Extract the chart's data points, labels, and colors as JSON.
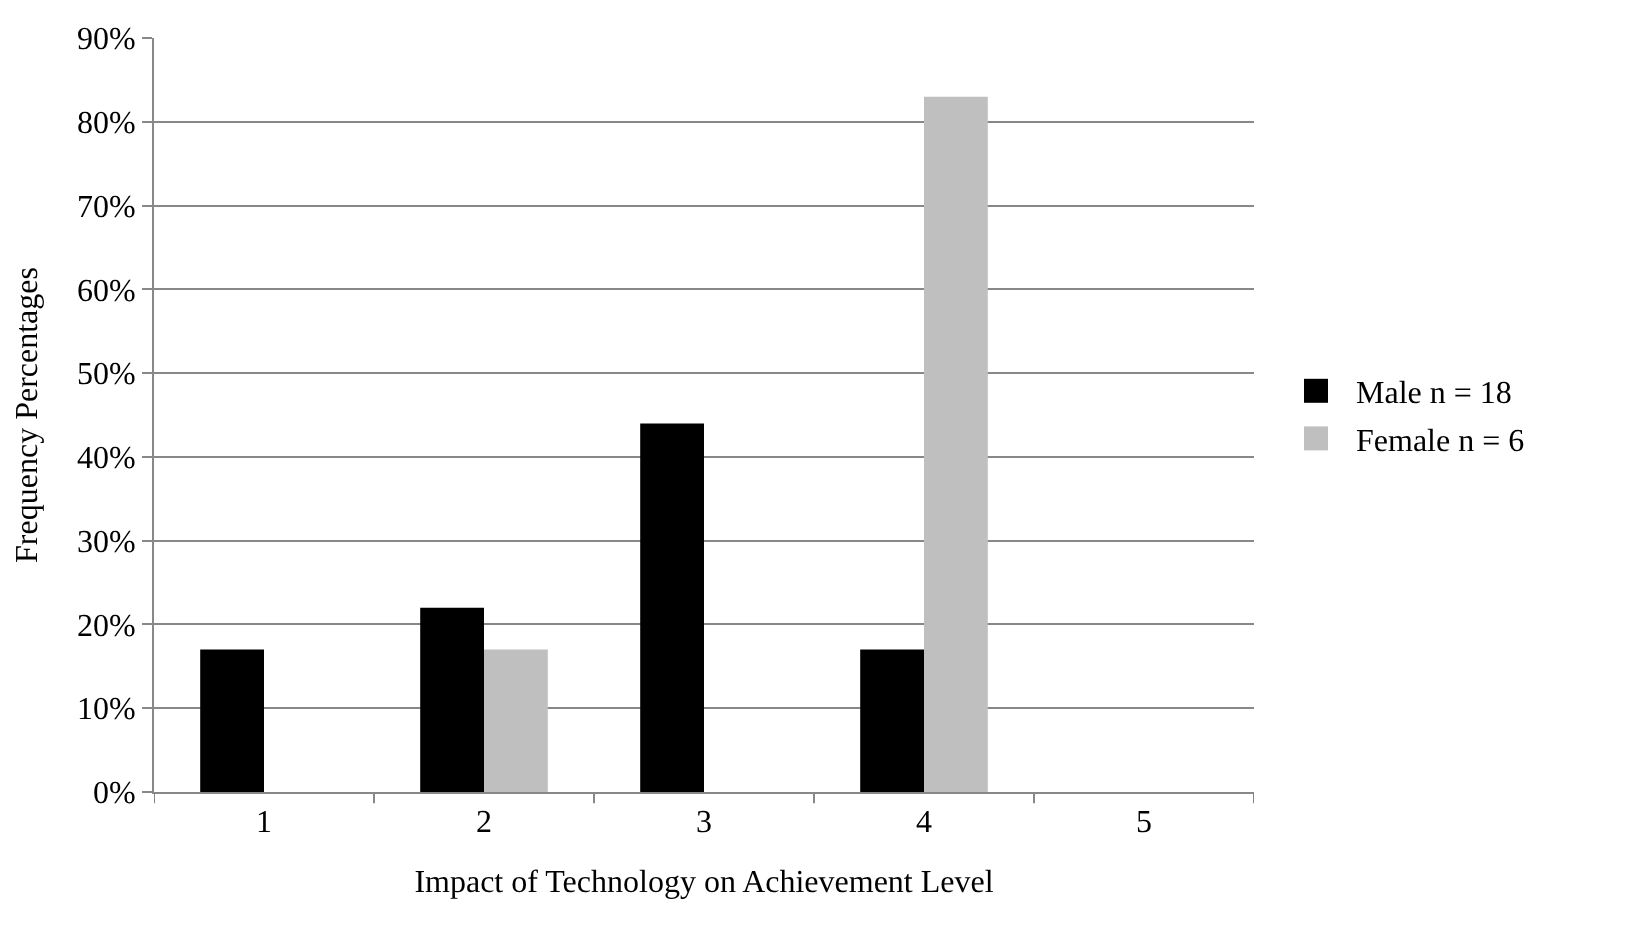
{
  "chart_data": {
    "type": "bar",
    "xlabel": "Impact of Technology on Achievement Level",
    "ylabel": "Frequency Percentages",
    "categories": [
      "1",
      "2",
      "3",
      "4",
      "5"
    ],
    "series": [
      {
        "name": "Male n = 18",
        "color": "#000000",
        "values": [
          17,
          22,
          44,
          17,
          0
        ]
      },
      {
        "name": "Female n = 6",
        "color": "#bfbfbf",
        "values": [
          0,
          17,
          0,
          83,
          0
        ]
      }
    ],
    "ylim": [
      0,
      90
    ],
    "yticks": [
      {
        "value": 0,
        "label": "0%"
      },
      {
        "value": 10,
        "label": "10%"
      },
      {
        "value": 20,
        "label": "20%"
      },
      {
        "value": 30,
        "label": "30%"
      },
      {
        "value": 40,
        "label": "40%"
      },
      {
        "value": 50,
        "label": "50%"
      },
      {
        "value": 60,
        "label": "60%"
      },
      {
        "value": 70,
        "label": "70%"
      },
      {
        "value": 80,
        "label": "80%"
      },
      {
        "value": 90,
        "label": "90%"
      }
    ],
    "grid": "y",
    "legend": "right"
  }
}
